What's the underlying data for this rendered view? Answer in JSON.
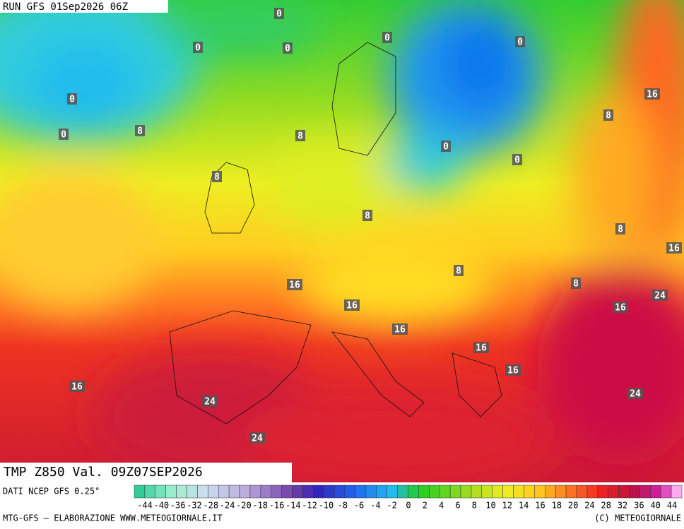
{
  "header": {
    "run": "RUN GFS 01Sep2026 06Z"
  },
  "map": {
    "contour_labels": [
      "0",
      "0",
      "0",
      "0",
      "0",
      "0",
      "0",
      "0",
      "0",
      "8",
      "8",
      "8",
      "8",
      "8",
      "8",
      "8",
      "8",
      "16",
      "16",
      "16",
      "16",
      "16",
      "16",
      "16",
      "16",
      "16",
      "24",
      "24",
      "24",
      "24"
    ]
  },
  "footer": {
    "title": "TMP Z850 Val. 09Z07SEP2026",
    "source": "DATI NCEP GFS 0.25°",
    "legend": [
      -44,
      -40,
      -36,
      -32,
      -28,
      -24,
      -20,
      -18,
      -16,
      -14,
      -12,
      -10,
      -8,
      -6,
      -4,
      -2,
      0,
      2,
      4,
      6,
      8,
      10,
      12,
      14,
      16,
      18,
      20,
      24,
      28,
      32,
      36,
      40,
      44
    ],
    "credit": "MTG-GFS — ELABORAZIONE WWW.METEOGIORNALE.IT",
    "copyright": "(C) METEOGIORNALE"
  }
}
